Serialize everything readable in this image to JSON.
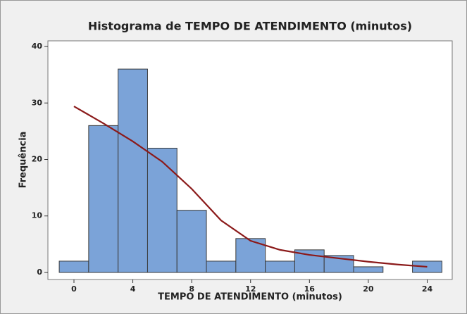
{
  "chart_data": {
    "type": "histogram",
    "title": "Histograma de TEMPO DE ATENDIMENTO (minutos)",
    "xlabel": "TEMPO DE ATENDIMENTO (minutos)",
    "ylabel": "Frequência",
    "bins": [
      -1,
      1,
      3,
      5,
      7,
      9,
      11,
      13,
      15,
      17,
      19,
      21,
      23,
      25
    ],
    "values": [
      2,
      26,
      36,
      22,
      11,
      2,
      6,
      2,
      4,
      3,
      1,
      0,
      2
    ],
    "color": "#7ba3d8",
    "xlim": [
      -1.77,
      25.7
    ],
    "ylim": [
      -1.25,
      41
    ],
    "xticks": [
      0,
      4,
      8,
      12,
      16,
      20,
      24
    ],
    "yticks": [
      0,
      10,
      20,
      30,
      40
    ],
    "grid": false,
    "fit": {
      "color": "#8b1a1a",
      "x": [
        0,
        2,
        4,
        6,
        8,
        10,
        12,
        14,
        16,
        18,
        20,
        22,
        24
      ],
      "values": [
        29.4,
        26.4,
        23.2,
        19.6,
        14.8,
        9.2,
        5.6,
        4.0,
        3.1,
        2.5,
        1.9,
        1.4,
        1.0
      ]
    }
  }
}
